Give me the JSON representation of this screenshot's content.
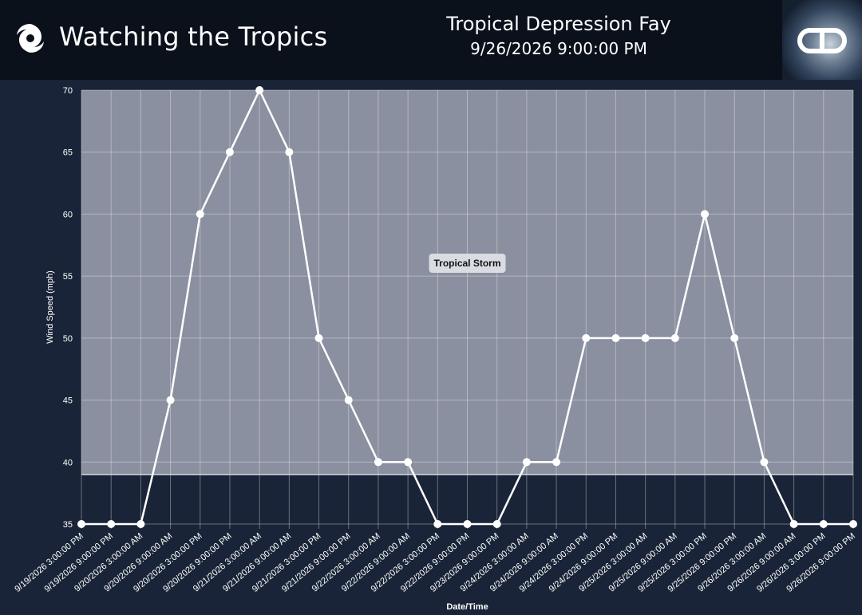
{
  "header": {
    "app_name": "Watching the Tropics",
    "storm_title": "Tropical Depression Fay",
    "storm_time": "9/26/2026 9:00:00 PM"
  },
  "colors": {
    "header_bg": "#0a111b",
    "page_bg": "#1a2438",
    "band_fill": "#8a909f",
    "line": "#ffffff"
  },
  "chart_data": {
    "type": "line",
    "title": "",
    "xlabel": "Date/Time",
    "ylabel": "Wind Speed (mph)",
    "ylim": [
      35,
      70
    ],
    "yticks": [
      35,
      40,
      45,
      50,
      55,
      60,
      65,
      70
    ],
    "grid": true,
    "categories": [
      "9/19/2026 3:00:00 PM",
      "9/19/2026 9:00:00 PM",
      "9/20/2026 3:00:00 AM",
      "9/20/2026 9:00:00 AM",
      "9/20/2026 3:00:00 PM",
      "9/20/2026 9:00:00 PM",
      "9/21/2026 3:00:00 AM",
      "9/21/2026 9:00:00 AM",
      "9/21/2026 3:00:00 PM",
      "9/21/2026 9:00:00 PM",
      "9/22/2026 3:00:00 AM",
      "9/22/2026 9:00:00 AM",
      "9/22/2026 3:00:00 PM",
      "9/22/2026 9:00:00 PM",
      "9/23/2026 9:00:00 PM",
      "9/24/2026 3:00:00 AM",
      "9/24/2026 9:00:00 AM",
      "9/24/2026 3:00:00 PM",
      "9/24/2026 9:00:00 PM",
      "9/25/2026 3:00:00 AM",
      "9/25/2026 9:00:00 AM",
      "9/25/2026 3:00:00 PM",
      "9/25/2026 9:00:00 PM",
      "9/26/2026 3:00:00 AM",
      "9/26/2026 9:00:00 AM",
      "9/26/2026 3:00:00 PM",
      "9/26/2026 9:00:00 PM"
    ],
    "series": [
      {
        "values": [
          35,
          35,
          35,
          45,
          60,
          65,
          70,
          65,
          50,
          45,
          40,
          40,
          35,
          35,
          35,
          40,
          40,
          50,
          50,
          50,
          50,
          60,
          50,
          40,
          35,
          35,
          35
        ]
      }
    ],
    "bands": [
      {
        "label": "Tropical Storm",
        "from": 39,
        "to": 70
      }
    ]
  }
}
